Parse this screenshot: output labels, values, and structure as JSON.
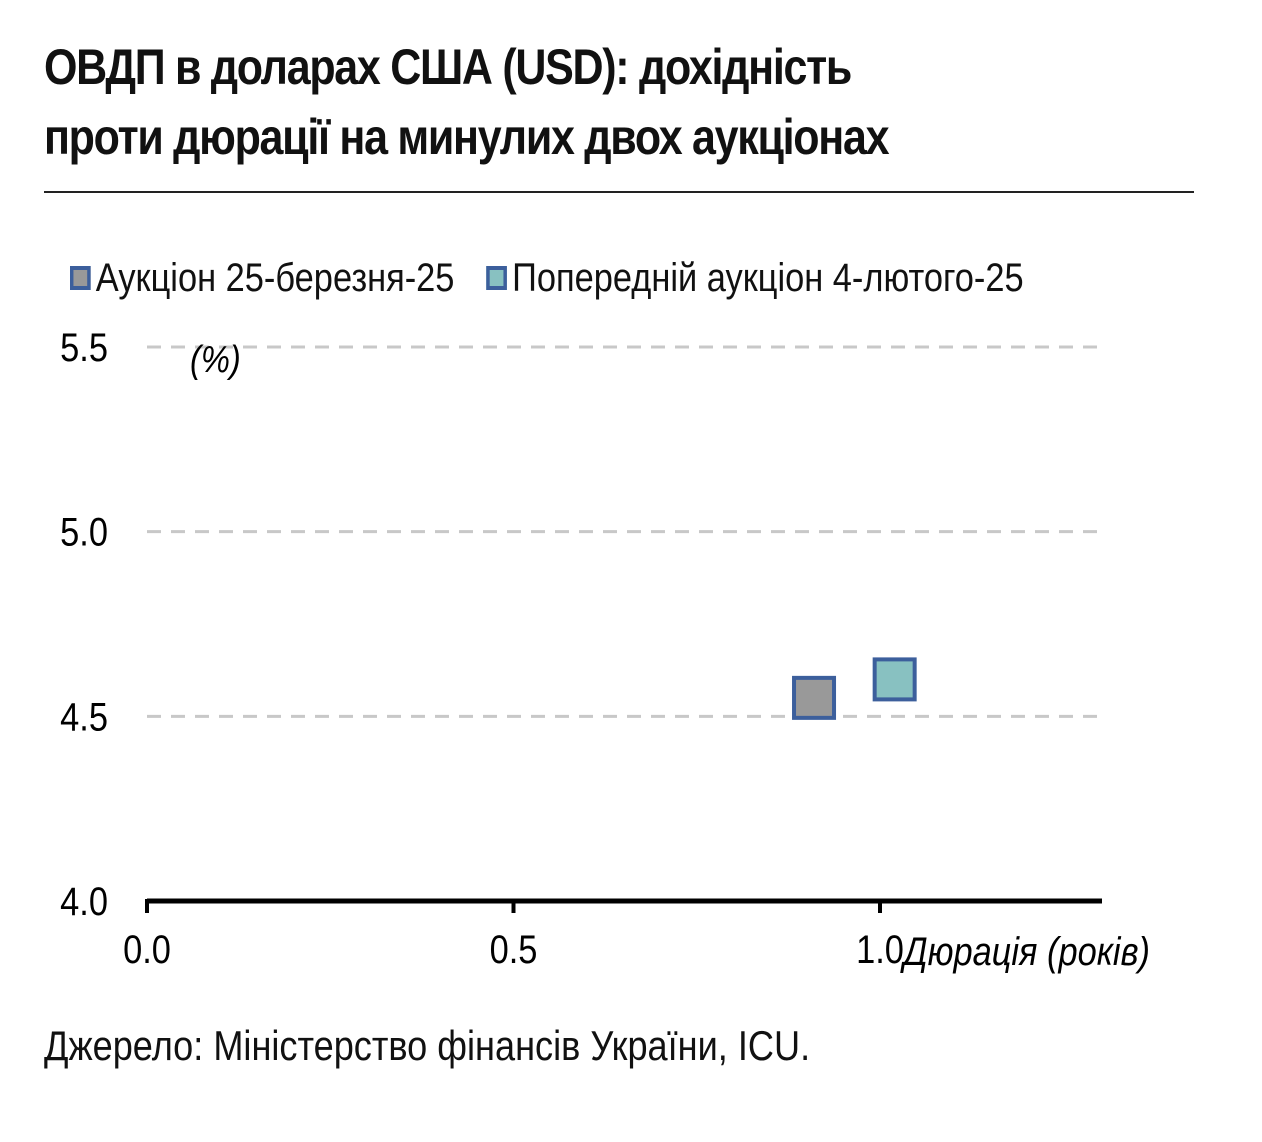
{
  "title_lines": [
    "ОВДП в доларах США (USD): дохідність",
    "проти дюрації на минулих двох аукціонах"
  ],
  "source": "Джерело: Міністерство фінансів України, ICU.",
  "chart_data": {
    "type": "scatter",
    "ylabel": "(%)",
    "xlabel": "Дюрація (років)",
    "xlim": [
      0,
      1.3
    ],
    "ylim": [
      4.0,
      5.5
    ],
    "x_ticks": [
      "0.0",
      "0.5",
      "1.0"
    ],
    "y_ticks": [
      "4.0",
      "4.5",
      "5.0",
      "5.5"
    ],
    "grid": "horizontal-dashed",
    "legend_position": "top",
    "series": [
      {
        "name": "Аукціон 25-березня-25",
        "color": "#999999",
        "border": "#3c5f9c",
        "points": [
          {
            "x": 0.91,
            "y": 4.55
          }
        ]
      },
      {
        "name": "Попередній аукціон 4-лютого-25",
        "color": "#88c1c1",
        "border": "#3c5f9c",
        "points": [
          {
            "x": 1.02,
            "y": 4.6
          }
        ]
      }
    ]
  }
}
